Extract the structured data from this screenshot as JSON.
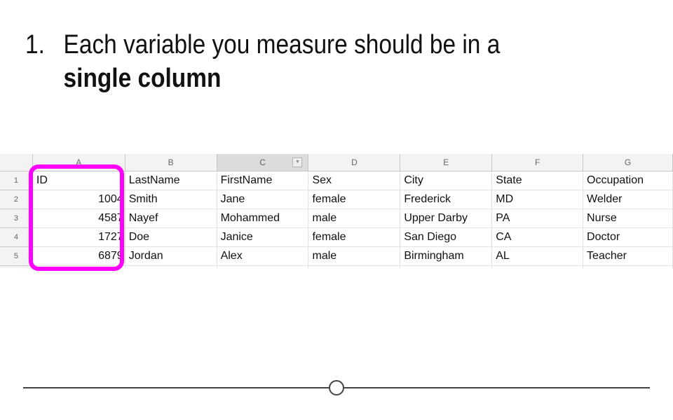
{
  "slide": {
    "number": "1.",
    "line1": "Each variable you measure should be in a",
    "line2": "single column"
  },
  "sheet": {
    "columns": [
      "A",
      "B",
      "C",
      "D",
      "E",
      "F",
      "G"
    ],
    "selected_column": "C",
    "row_numbers": [
      "1",
      "2",
      "3",
      "4",
      "5"
    ],
    "rows": [
      [
        "ID",
        "LastName",
        "FirstName",
        "Sex",
        "City",
        "State",
        "Occupation"
      ],
      [
        "1004",
        "Smith",
        "Jane",
        "female",
        "Frederick",
        "MD",
        "Welder"
      ],
      [
        "4587",
        "Nayef",
        "Mohammed",
        "male",
        "Upper Darby",
        "PA",
        "Nurse"
      ],
      [
        "1727",
        "Doe",
        "Janice",
        "female",
        "San Diego",
        "CA",
        "Doctor"
      ],
      [
        "6879",
        "Jordan",
        "Alex",
        "male",
        "Birmingham",
        "AL",
        "Teacher"
      ]
    ]
  },
  "colors": {
    "highlight": "#ff00ff",
    "header_bg": "#f3f3f3",
    "selected_header_bg": "#dcdcdc"
  },
  "icons": {
    "filter": "filter-dropdown-icon",
    "slider": "slider-knob"
  }
}
